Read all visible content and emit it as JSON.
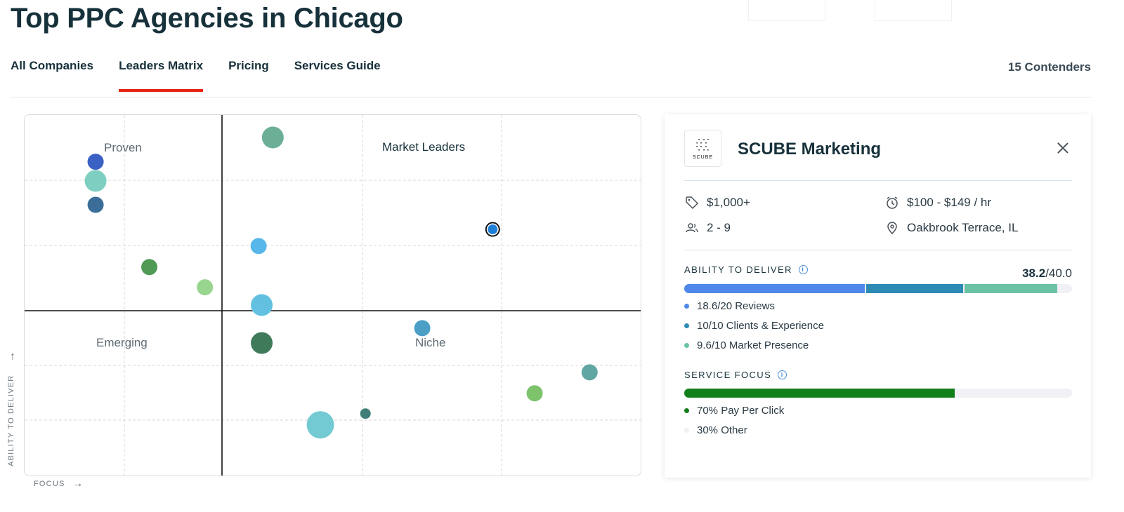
{
  "page_title": "Top PPC Agencies in Chicago",
  "tabs": [
    {
      "label": "All Companies",
      "active": false
    },
    {
      "label": "Leaders Matrix",
      "active": true
    },
    {
      "label": "Pricing",
      "active": false
    },
    {
      "label": "Services Guide",
      "active": false
    }
  ],
  "contenders_label": "15 Contenders",
  "matrix": {
    "quadrants": {
      "proven": "Proven",
      "leaders": "Market Leaders",
      "emerging": "Emerging",
      "niche": "Niche"
    },
    "y_axis_label": "ABILITY TO DELIVER",
    "x_axis_label": "FOCUS",
    "bubbles": [
      {
        "focus": 0.115,
        "ability": 0.871,
        "size": "medium",
        "color": "#3c61c4"
      },
      {
        "focus": 0.115,
        "ability": 0.818,
        "size": "large",
        "color": "#7ecfc2"
      },
      {
        "focus": 0.115,
        "ability": 0.752,
        "size": "medium",
        "color": "#3a6e98"
      },
      {
        "focus": 0.402,
        "ability": 0.938,
        "size": "large",
        "color": "#6caf97"
      },
      {
        "focus": 0.758,
        "ability": 0.684,
        "size": "selected",
        "color": "#1f7fd6",
        "selected": true
      },
      {
        "focus": 0.379,
        "ability": 0.638,
        "size": "medium",
        "color": "#58b7ea"
      },
      {
        "focus": 0.202,
        "ability": 0.58,
        "size": "medium",
        "color": "#4f9a55"
      },
      {
        "focus": 0.292,
        "ability": 0.524,
        "size": "medium",
        "color": "#98d58f"
      },
      {
        "focus": 0.384,
        "ability": 0.475,
        "size": "large",
        "color": "#62c0e0"
      },
      {
        "focus": 0.644,
        "ability": 0.411,
        "size": "medium",
        "color": "#4b9fc7"
      },
      {
        "focus": 0.384,
        "ability": 0.37,
        "size": "large",
        "color": "#3f7a5a"
      },
      {
        "focus": 0.915,
        "ability": 0.289,
        "size": "medium",
        "color": "#62a6a3"
      },
      {
        "focus": 0.826,
        "ability": 0.231,
        "size": "medium",
        "color": "#7cc36b"
      },
      {
        "focus": 0.552,
        "ability": 0.175,
        "size": "small",
        "color": "#3f7f78"
      },
      {
        "focus": 0.479,
        "ability": 0.144,
        "size": "xlarge",
        "color": "#74cad3"
      }
    ]
  },
  "detail": {
    "logo_text": "SCUBE",
    "company_name": "SCUBE Marketing",
    "min_project": "$1,000+",
    "hourly_rate": "$100 - $149 / hr",
    "employees": "2 - 9",
    "location": "Oakbrook Terrace, IL",
    "ability": {
      "label": "ABILITY TO DELIVER",
      "score": "38.2",
      "max": "/40.0",
      "segments": [
        {
          "value": 18.6,
          "color": "#4f88ea",
          "label": "18.6/20 Reviews"
        },
        {
          "value": 10,
          "color": "#2c8ab5",
          "label": "10/10 Clients & Experience"
        },
        {
          "value": 9.6,
          "color": "#6cc2a4",
          "label": "9.6/10 Market Presence"
        }
      ],
      "total": 40
    },
    "service_focus": {
      "label": "SERVICE FOCUS",
      "segments": [
        {
          "value": 70,
          "color": "#137f1b",
          "label": "70% Pay Per Click"
        },
        {
          "value": 30,
          "color": "#f1f0f5",
          "label": "30% Other"
        }
      ]
    }
  }
}
